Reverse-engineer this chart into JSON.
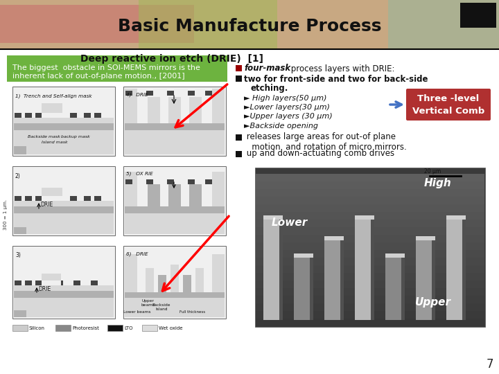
{
  "title": "Basic Manufacture Process",
  "subtitle": "Deep reactive ion etch (DRIE)  [1]",
  "bg_color": "#f0ead8",
  "title_color": "#111111",
  "title_fontsize": 18,
  "subtitle_fontsize": 10,
  "green_box_text_line1": "The biggest  obstacle in SOI-MEMS mirrors is the",
  "green_box_text_line2": "inherent lack of out-of-plane motion., [2001]",
  "green_box_bg": "#6db33f",
  "green_box_text_color": "#ffffff",
  "bullet1a": "four-mask",
  "bullet1b": " process layers with DRIE:",
  "bullet2": "two for front-side and two for back-side",
  "bullet2b": "etching.",
  "bullets_sub": [
    "► High layers(50 μm)",
    "►Lower layers(30 μm)",
    "►Upper layers (30 μm)",
    "►Backside opening"
  ],
  "three_level_box_text": "Three -level\nVertical Comb",
  "three_level_box_bg": "#b03030",
  "bullet3a": " releases large areas for out-of plane",
  "bullet3b": "   motion  and rotation of micro mirrors.",
  "bullet4": " up and down-actuating comb drives",
  "page_number": "7",
  "black_box_color": "#111111",
  "header_sandy": "#c8a882",
  "header_pink": "#c87870",
  "header_green": "#a0b858",
  "header_blue_green": "#90b8a0",
  "white_content_bg": "#ffffff",
  "legend_silicon": "#cccccc",
  "legend_photoresist": "#888888",
  "legend_lto": "#111111",
  "legend_wetoxide": "#dddddd",
  "diag_light": "#d8d8d8",
  "diag_mid": "#b0b0b0",
  "diag_dark": "#444444",
  "diag_white": "#f0f0f0",
  "diag_border": "#666666"
}
